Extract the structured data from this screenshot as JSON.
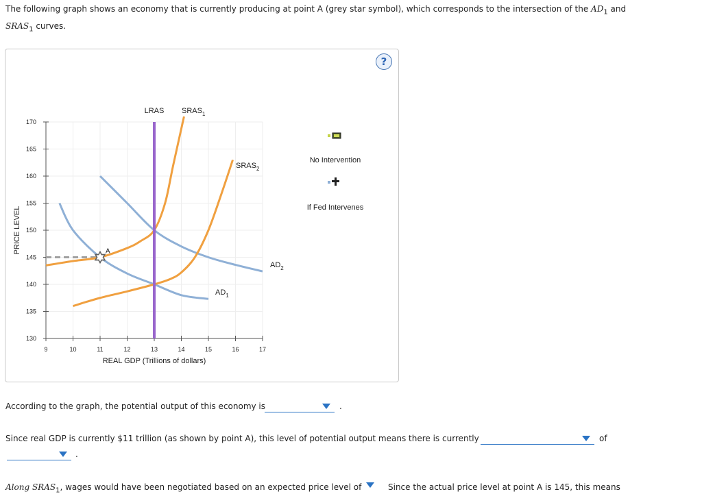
{
  "intro": {
    "part1": "The following graph shows an economy that is currently producing at point A (grey star symbol), which corresponds to the intersection of the ",
    "ad1": "AD",
    "ad1_sub": "1",
    "and": " and",
    "sras1": "SRAS",
    "sras1_sub": "1",
    "part2": " curves."
  },
  "help_label": "?",
  "chart_data": {
    "type": "line",
    "xlabel": "REAL GDP (Trillions of dollars)",
    "ylabel": "PRICE LEVEL",
    "xlim": [
      9,
      17
    ],
    "ylim": [
      130,
      170
    ],
    "x_ticks": [
      "9",
      "10",
      "11",
      "12",
      "13",
      "14",
      "15",
      "16",
      "17"
    ],
    "y_ticks": [
      "130",
      "135",
      "140",
      "145",
      "150",
      "155",
      "160",
      "165",
      "170"
    ],
    "grid": true,
    "colors": {
      "lras": "#9966cc",
      "sras": "#f0a040",
      "ad": "#8fb0d6",
      "dashed": "#a0a0a0",
      "star": "#606060"
    },
    "lras": {
      "label": "LRAS",
      "x": 13
    },
    "series": [
      {
        "name": "SRAS",
        "sub": "1",
        "type": "sras",
        "points": [
          [
            9,
            143.5
          ],
          [
            10,
            144.3
          ],
          [
            11,
            145
          ],
          [
            12,
            146.7
          ],
          [
            12.5,
            148
          ],
          [
            13,
            150
          ],
          [
            13.4,
            155
          ],
          [
            13.7,
            162
          ],
          [
            14.1,
            171
          ]
        ]
      },
      {
        "name": "SRAS",
        "sub": "2",
        "type": "sras",
        "points": [
          [
            10,
            136
          ],
          [
            11,
            137.5
          ],
          [
            12,
            138.7
          ],
          [
            13,
            140
          ],
          [
            13.6,
            141
          ],
          [
            14,
            142.2
          ],
          [
            14.5,
            145
          ],
          [
            15,
            150
          ],
          [
            15.5,
            157
          ],
          [
            15.9,
            163
          ]
        ]
      },
      {
        "name": "AD",
        "sub": "1",
        "type": "ad",
        "points": [
          [
            9.5,
            155
          ],
          [
            10,
            150
          ],
          [
            11,
            145
          ],
          [
            12,
            142
          ],
          [
            13,
            140
          ],
          [
            14,
            138
          ],
          [
            15,
            137.3
          ]
        ]
      },
      {
        "name": "AD",
        "sub": "2",
        "type": "ad",
        "points": [
          [
            11,
            160
          ],
          [
            12,
            155
          ],
          [
            13,
            150
          ],
          [
            14,
            147
          ],
          [
            15,
            145
          ],
          [
            16,
            143.6
          ],
          [
            17,
            142.4
          ]
        ]
      }
    ],
    "points": [
      {
        "label": "A",
        "x": 11,
        "y": 145
      }
    ],
    "dashed_guide": {
      "from_x": 9,
      "to_x": 11,
      "y": 145
    },
    "legend": [
      {
        "label": "No Intervention",
        "symbol": "square"
      },
      {
        "label": "If Fed Intervenes",
        "symbol": "plus"
      }
    ]
  },
  "q1": {
    "text": "According to the graph, the potential output of this economy is",
    "selected": "",
    "after": "."
  },
  "q2": {
    "text": "Since real GDP is currently $11 trillion (as shown by point A), this level of potential output means there is currently",
    "selected": "",
    "after": "of",
    "selected2": "",
    "after2": "."
  },
  "q3": {
    "text_left": "Along SRAS",
    "text_left_sub": "1",
    "text_mid": ", wages would have been negotiated based on an expected price level of",
    "text_right": "Since the actual price level at point A is 145, this means"
  }
}
